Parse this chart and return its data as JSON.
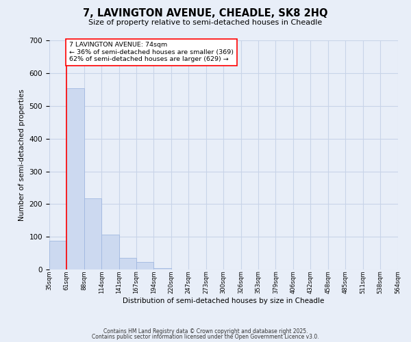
{
  "title": "7, LAVINGTON AVENUE, CHEADLE, SK8 2HQ",
  "subtitle": "Size of property relative to semi-detached houses in Cheadle",
  "xlabel": "Distribution of semi-detached houses by size in Cheadle",
  "ylabel": "Number of semi-detached properties",
  "bar_values": [
    88,
    554,
    218,
    106,
    36,
    23,
    5,
    0,
    0,
    0,
    0,
    0,
    0,
    0,
    0,
    0,
    0,
    0,
    0,
    0
  ],
  "bin_labels": [
    "35sqm",
    "61sqm",
    "88sqm",
    "114sqm",
    "141sqm",
    "167sqm",
    "194sqm",
    "220sqm",
    "247sqm",
    "273sqm",
    "300sqm",
    "326sqm",
    "353sqm",
    "379sqm",
    "406sqm",
    "432sqm",
    "458sqm",
    "485sqm",
    "511sqm",
    "538sqm",
    "564sqm"
  ],
  "bar_color": "#ccd9f0",
  "bar_edge_color": "#a0b8e0",
  "property_line_x": 1.0,
  "property_size": "74sqm",
  "pct_smaller": 36,
  "count_smaller": 369,
  "pct_larger": 62,
  "count_larger": 629,
  "annotation_text_line1": "7 LAVINGTON AVENUE: 74sqm",
  "annotation_text_line2": "← 36% of semi-detached houses are smaller (369)",
  "annotation_text_line3": "62% of semi-detached houses are larger (629) →",
  "ylim": [
    0,
    700
  ],
  "yticks": [
    0,
    100,
    200,
    300,
    400,
    500,
    600,
    700
  ],
  "background_color": "#e8eef8",
  "grid_color": "#c8d4e8",
  "footer_line1": "Contains HM Land Registry data © Crown copyright and database right 2025.",
  "footer_line2": "Contains public sector information licensed under the Open Government Licence v3.0."
}
